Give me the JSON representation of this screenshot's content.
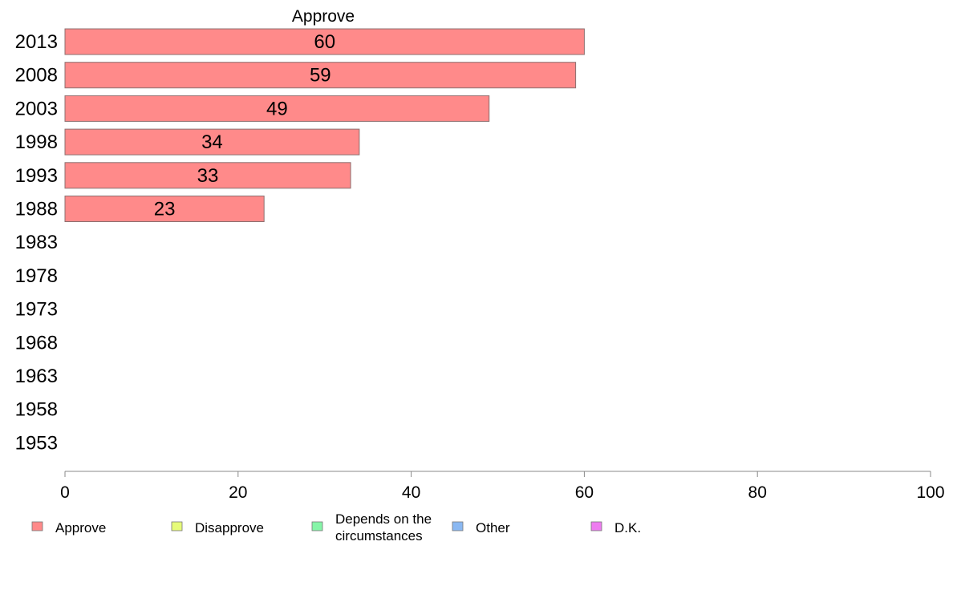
{
  "chart_data": {
    "type": "bar",
    "orientation": "horizontal",
    "title": "Approve",
    "categories": [
      "2013",
      "2008",
      "2003",
      "1998",
      "1993",
      "1988",
      "1983",
      "1978",
      "1973",
      "1968",
      "1963",
      "1958",
      "1953"
    ],
    "series": [
      {
        "name": "Approve",
        "values": [
          60,
          59,
          49,
          34,
          33,
          23,
          null,
          null,
          null,
          null,
          null,
          null,
          null
        ],
        "color": "#ff8a8a"
      }
    ],
    "xlim": [
      0,
      100
    ],
    "xticks": [
      0,
      20,
      40,
      60,
      80,
      100
    ],
    "xlabel": "",
    "ylabel": "",
    "grid": false,
    "legend": {
      "placement": "bottom",
      "entries": [
        {
          "label": "Approve",
          "color": "#ff8a8a"
        },
        {
          "label": "Disapprove",
          "color": "#e6fb7a"
        },
        {
          "label": "Depends on the circumstances",
          "lines": [
            "Depends on the",
            "circumstances"
          ],
          "color": "#86f5a8"
        },
        {
          "label": "Other",
          "color": "#8ab8f2"
        },
        {
          "label": "D.K.",
          "color": "#ee7cf0"
        }
      ]
    }
  }
}
